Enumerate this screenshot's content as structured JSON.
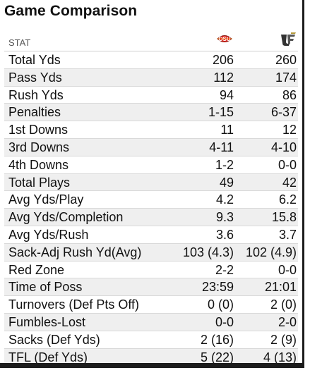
{
  "title": "Game Comparison",
  "header": {
    "stat_label": "STAT",
    "team1_logo": "osu-logo-icon",
    "team2_logo": "ucf-logo-icon",
    "team1_color": "#e1261c",
    "team2_color": "#444444"
  },
  "rows": [
    {
      "stat": "Total Yds",
      "team1": "206",
      "team2": "260"
    },
    {
      "stat": "Pass Yds",
      "team1": "112",
      "team2": "174"
    },
    {
      "stat": "Rush Yds",
      "team1": "94",
      "team2": "86"
    },
    {
      "stat": "Penalties",
      "team1": "1-15",
      "team2": "6-37"
    },
    {
      "stat": "1st Downs",
      "team1": "11",
      "team2": "12"
    },
    {
      "stat": "3rd Downs",
      "team1": "4-11",
      "team2": "4-10"
    },
    {
      "stat": "4th Downs",
      "team1": "1-2",
      "team2": "0-0"
    },
    {
      "stat": "Total Plays",
      "team1": "49",
      "team2": "42"
    },
    {
      "stat": "Avg Yds/Play",
      "team1": "4.2",
      "team2": "6.2"
    },
    {
      "stat": "Avg Yds/Completion",
      "team1": "9.3",
      "team2": "15.8"
    },
    {
      "stat": "Avg Yds/Rush",
      "team1": "3.6",
      "team2": "3.7"
    },
    {
      "stat": "Sack-Adj Rush Yd(Avg)",
      "team1": "103 (4.3)",
      "team2": "102 (4.9)"
    },
    {
      "stat": "Red Zone",
      "team1": "2-2",
      "team2": "0-0"
    },
    {
      "stat": "Time of Poss",
      "team1": "23:59",
      "team2": "21:01"
    },
    {
      "stat": "Turnovers (Def Pts Off)",
      "team1": "0 (0)",
      "team2": "2 (0)"
    },
    {
      "stat": "Fumbles-Lost",
      "team1": "0-0",
      "team2": "2-0"
    },
    {
      "stat": "Sacks (Def Yds)",
      "team1": "2 (16)",
      "team2": "2 (9)"
    },
    {
      "stat": "TFL (Def Yds)",
      "team1": "5 (22)",
      "team2": "4 (13)"
    }
  ]
}
